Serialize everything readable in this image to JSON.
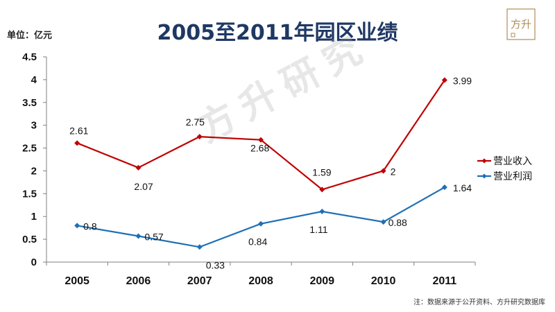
{
  "header": {
    "title": "2005至2011年园区业绩",
    "unit": "单位：亿元",
    "logo_text": "方升"
  },
  "watermark": "方升研究",
  "footer": {
    "note": "注：数据来源于公开资料、方升研究数据库"
  },
  "chart_data": {
    "type": "line",
    "title": "2005至2011年园区业绩",
    "ylabel": "单位：亿元",
    "xlabel": "",
    "categories": [
      "2005",
      "2006",
      "2007",
      "2008",
      "2009",
      "2010",
      "2011"
    ],
    "ylim": [
      0,
      4.5
    ],
    "yticks": [
      "0",
      "0.5",
      "1",
      "1.5",
      "2",
      "2.5",
      "3",
      "3.5",
      "4",
      "4.5"
    ],
    "grid": false,
    "legend_position": "right",
    "series": [
      {
        "name": "营业收入",
        "color": "#c00000",
        "values": [
          2.61,
          2.07,
          2.75,
          2.68,
          1.59,
          2,
          3.99
        ],
        "labels": [
          "2.61",
          "2.07",
          "2.75",
          "2.68",
          "1.59",
          "2",
          "3.99"
        ]
      },
      {
        "name": "营业利润",
        "color": "#1f6fb5",
        "values": [
          0.8,
          0.57,
          0.33,
          0.84,
          1.11,
          0.88,
          1.64
        ],
        "labels": [
          "0.8",
          "0.57",
          "0.33",
          "0.84",
          "1.11",
          "0.88",
          "1.64"
        ]
      }
    ]
  }
}
